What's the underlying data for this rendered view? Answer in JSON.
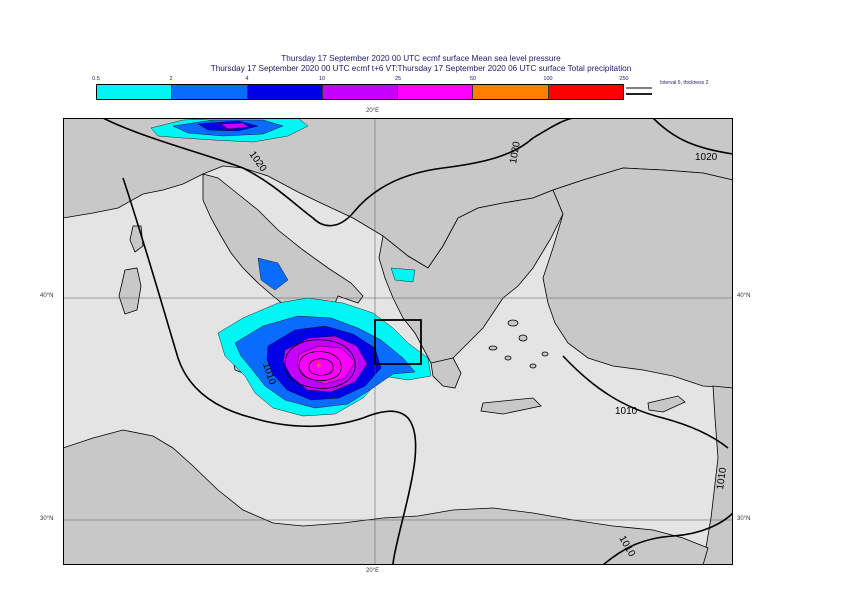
{
  "title_line1": "Thursday 17 September 2020 00 UTC ecmf surface  Mean sea level pressure",
  "title_line2": "Thursday 17 September 2020 00 UTC ecmf t+6 VT:Thursday 17 September 2020 06 UTC surface  Total precipitation",
  "colorbar": {
    "ticks": [
      "0.5",
      "2",
      "4",
      "10",
      "25",
      "50",
      "100",
      "250"
    ],
    "colors": [
      "#00f5f5",
      "#0a6cff",
      "#0000e6",
      "#c400ff",
      "#ff00ff",
      "#ff7f00",
      "#ff0000"
    ]
  },
  "contour_legend": "Interval 5, thickness 2",
  "map": {
    "lon_top": "20°E",
    "lon_bottom": "20°E",
    "lat40_left": "40°N",
    "lat40_right": "40°N",
    "lat30_left": "30°N",
    "lat30_right": "30°N",
    "land_color": "#c8c8c8",
    "sea_color": "#e4e4e4",
    "isobars": [
      "1020",
      "1020",
      "1020",
      "1010",
      "1010",
      "1010",
      "1010"
    ]
  }
}
